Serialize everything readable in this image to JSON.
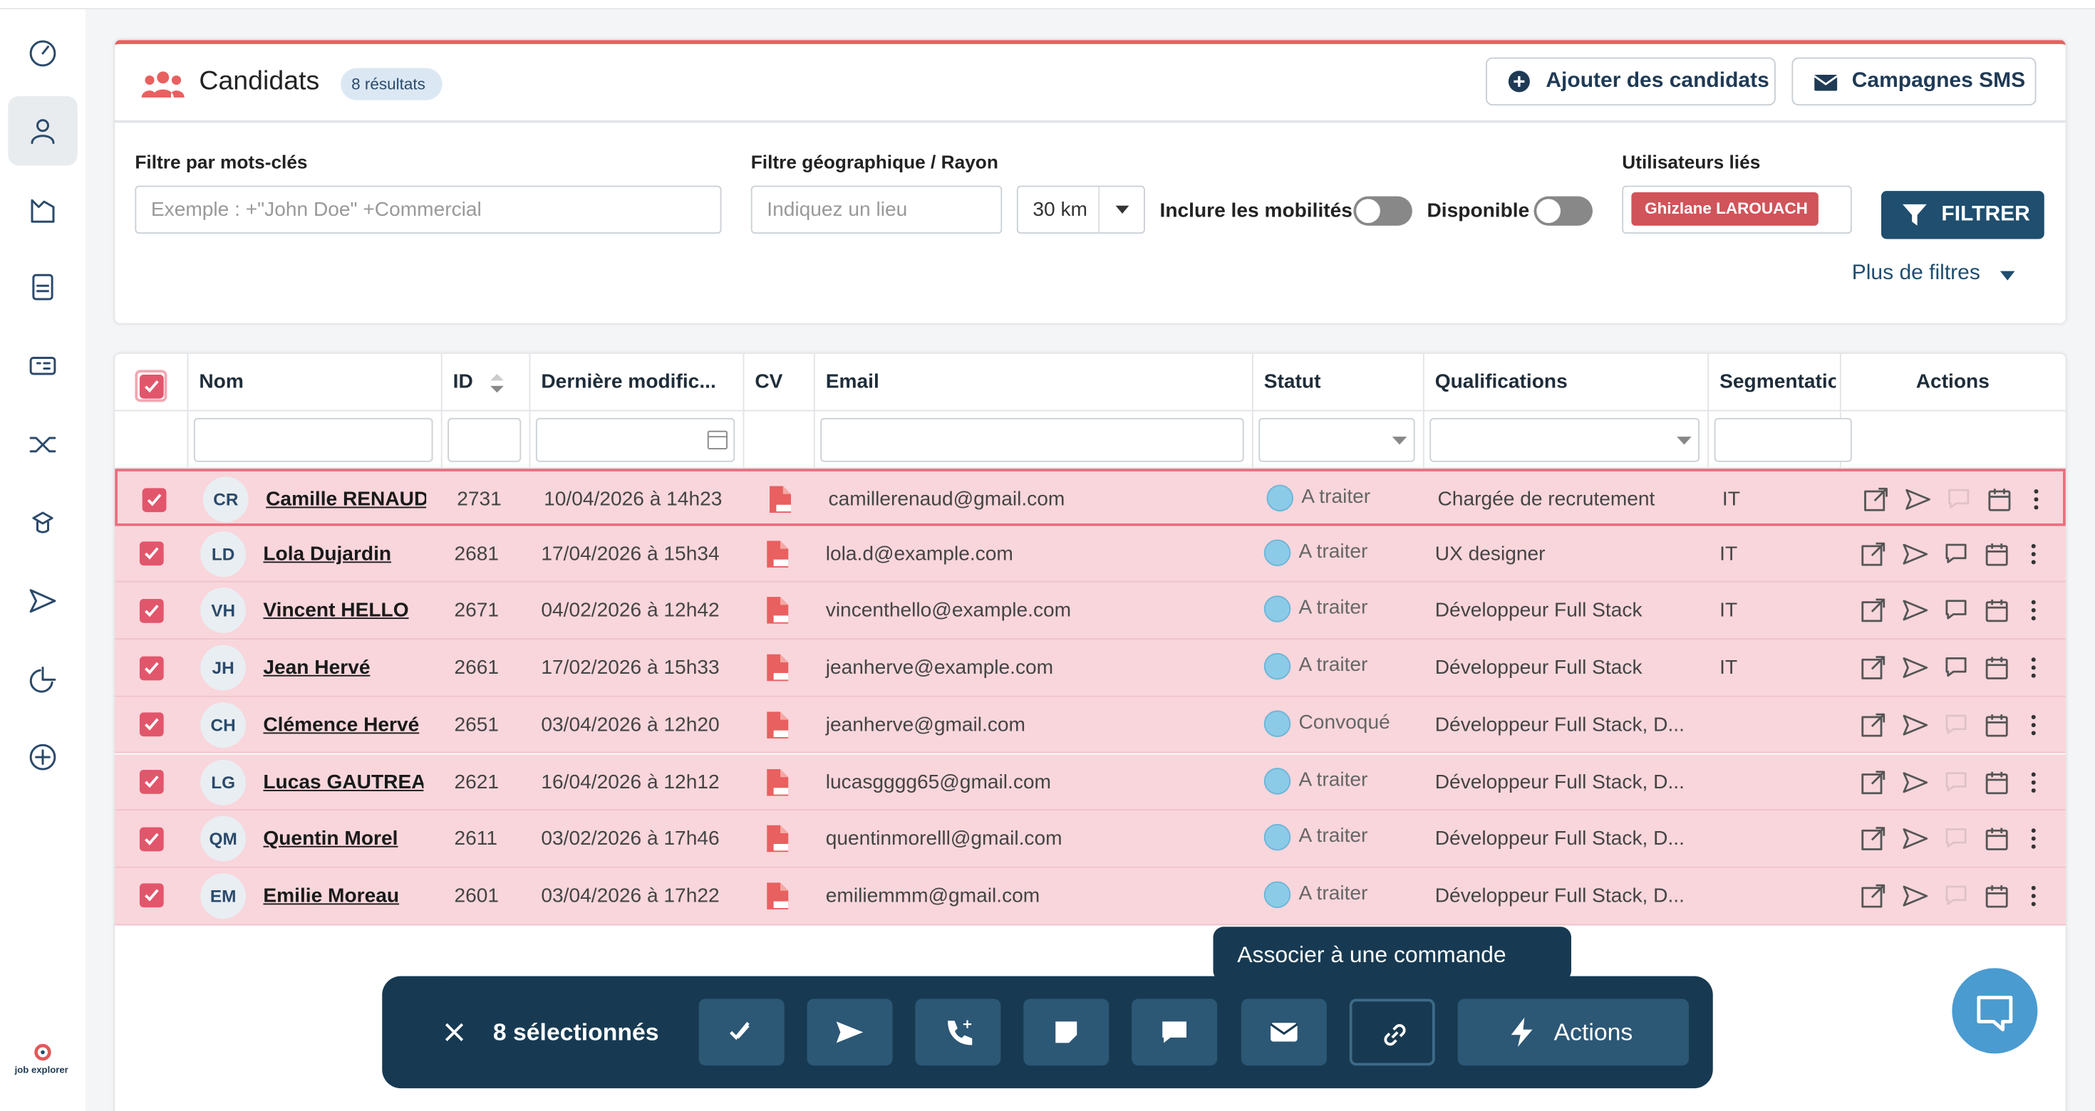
{
  "sidebar": {
    "logo": "job explorer"
  },
  "header": {
    "title": "Candidats",
    "count": "8 résultats",
    "buttons": [
      "Ajouter des candidats",
      "Campagnes SMS"
    ]
  },
  "filters": {
    "keyword_label": "Filtre par mots-clés",
    "keyword_placeholder": "Exemple : +\"John Doe\" +Commercial",
    "geo_label": "Filtre géographique / Rayon",
    "geo_placeholder": "Indiquez un lieu",
    "radius": "30 km",
    "mobility": "Inclure les mobilités",
    "available": "Disponible",
    "users_label": "Utilisateurs liés",
    "user_tag": "Ghizlane LAROUACH",
    "submit": "FILTRER",
    "more": "Plus de filtres"
  },
  "table": {
    "columns": [
      "Nom",
      "ID",
      "Dernière modific...",
      "CV",
      "Email",
      "Statut",
      "Qualifications",
      "Segmentation",
      "Actions"
    ],
    "rows": [
      {
        "initials": "CR",
        "name": "Camille RENAUD",
        "id": 2731,
        "date": "10/04/2026 à 14h23",
        "email": "camillerenaud@gmail.com",
        "status": "A traiter",
        "qualification": "Chargée de recrutement",
        "segmentation": "IT"
      },
      {
        "initials": "LD",
        "name": "Lola Dujardin",
        "id": 2681,
        "date": "17/04/2026 à 15h34",
        "email": "lola.d@example.com",
        "status": "A traiter",
        "qualification": "UX designer",
        "segmentation": "IT"
      },
      {
        "initials": "VH",
        "name": "Vincent HELLO",
        "id": 2671,
        "date": "04/02/2026 à 12h42",
        "email": "vincenthello@example.com",
        "status": "A traiter",
        "qualification": "Développeur Full Stack",
        "segmentation": "IT"
      },
      {
        "initials": "JH",
        "name": "Jean Hervé",
        "id": 2661,
        "date": "17/02/2026 à 15h33",
        "email": "jeanherve@example.com",
        "status": "A traiter",
        "qualification": "Développeur Full Stack",
        "segmentation": "IT"
      },
      {
        "initials": "CH",
        "name": "Clémence Hervé",
        "id": 2651,
        "date": "03/04/2026 à 12h20",
        "email": "jeanherve@gmail.com",
        "status": "Convoqué",
        "qualification": "Développeur Full Stack, D..."
      },
      {
        "initials": "LG",
        "name": "Lucas GAUTREAU",
        "id": 2621,
        "date": "16/04/2026 à 12h12",
        "email": "lucasgggg65@gmail.com",
        "status": "A traiter",
        "qualification": "Développeur Full Stack, D..."
      },
      {
        "initials": "QM",
        "name": "Quentin Morel",
        "id": 2611,
        "date": "03/02/2026 à 17h46",
        "email": "quentinmorelll@gmail.com",
        "status": "A traiter",
        "qualification": "Développeur Full Stack, D..."
      },
      {
        "initials": "EM",
        "name": "Emilie Moreau",
        "id": 2601,
        "date": "03/04/2026 à 17h22",
        "email": "emiliemmm@gmail.com",
        "status": "A traiter",
        "qualification": "Développeur Full Stack, D..."
      }
    ]
  },
  "bulk": {
    "selected": "8 sélectionnés",
    "actions": "Actions",
    "tooltip": "Associer à une commande"
  }
}
